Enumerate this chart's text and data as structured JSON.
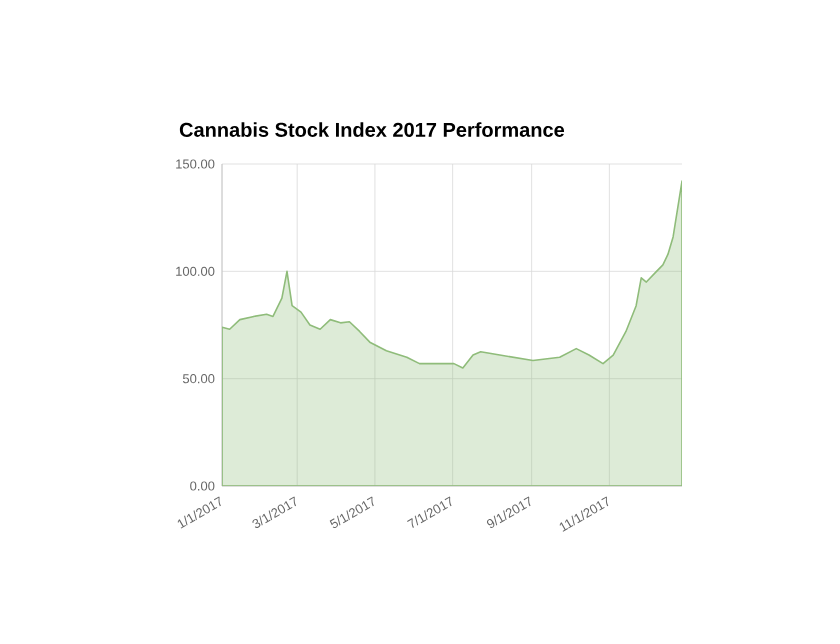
{
  "chart_data": {
    "type": "area",
    "title": "Cannabis Stock Index 2017 Performance",
    "x": [
      "2017-01-01",
      "2017-01-07",
      "2017-01-15",
      "2017-01-26",
      "2017-02-05",
      "2017-02-10",
      "2017-02-17",
      "2017-02-21",
      "2017-02-25",
      "2017-03-04",
      "2017-03-11",
      "2017-03-19",
      "2017-03-27",
      "2017-04-04",
      "2017-04-11",
      "2017-04-19",
      "2017-04-27",
      "2017-05-10",
      "2017-05-26",
      "2017-06-05",
      "2017-06-21",
      "2017-07-02",
      "2017-07-09",
      "2017-07-17",
      "2017-07-23",
      "2017-08-07",
      "2017-09-02",
      "2017-09-23",
      "2017-10-06",
      "2017-10-16",
      "2017-10-27",
      "2017-11-04",
      "2017-11-14",
      "2017-11-22",
      "2017-11-26",
      "2017-11-30",
      "2017-12-08",
      "2017-12-13",
      "2017-12-17",
      "2017-12-21",
      "2017-12-28"
    ],
    "series": [
      {
        "color": "#8fbc7a",
        "values": [
          74,
          73,
          77.5,
          79,
          80,
          79,
          87.5,
          100,
          84,
          81,
          75,
          73,
          77.5,
          76,
          76.5,
          72,
          67,
          63,
          60,
          57,
          57,
          57,
          55,
          61,
          62.5,
          61,
          58.5,
          60,
          64,
          61,
          57,
          61,
          72,
          84,
          97,
          95,
          100,
          103,
          108,
          116,
          142
        ]
      }
    ],
    "xlim": [
      "2017-01-01",
      "2017-12-28"
    ],
    "xticks": [
      {
        "value": "2017-01-01",
        "label": "1/1/2017"
      },
      {
        "value": "2017-03-01",
        "label": "3/1/2017"
      },
      {
        "value": "2017-05-01",
        "label": "5/1/2017"
      },
      {
        "value": "2017-07-01",
        "label": "7/1/2017"
      },
      {
        "value": "2017-09-01",
        "label": "9/1/2017"
      },
      {
        "value": "2017-11-01",
        "label": "11/1/2017"
      }
    ],
    "ylim": [
      0,
      150
    ],
    "yticks": [
      {
        "value": 0,
        "label": "0.00"
      },
      {
        "value": 50,
        "label": "50.00"
      },
      {
        "value": 100,
        "label": "100.00"
      },
      {
        "value": 150,
        "label": "150.00"
      }
    ],
    "grid": true
  }
}
